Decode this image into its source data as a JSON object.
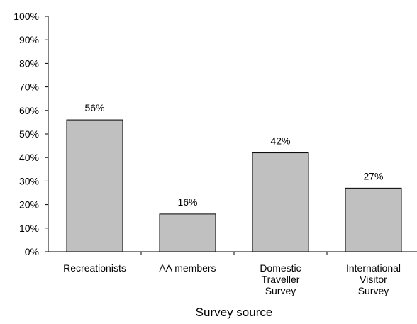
{
  "chart_data": {
    "type": "bar",
    "categories": [
      [
        "Recreationists"
      ],
      [
        "AA members"
      ],
      [
        "Domestic",
        "Traveller",
        "Survey"
      ],
      [
        "International",
        "Visitor",
        "Survey"
      ]
    ],
    "values": [
      56,
      16,
      42,
      27
    ],
    "data_labels": [
      "56%",
      "16%",
      "42%",
      "27%"
    ],
    "xlabel": "Survey source",
    "ylabel": "",
    "ylim": [
      0,
      100
    ],
    "yticks": [
      0,
      10,
      20,
      30,
      40,
      50,
      60,
      70,
      80,
      90,
      100
    ],
    "ytick_labels": [
      "0%",
      "10%",
      "20%",
      "30%",
      "40%",
      "50%",
      "60%",
      "70%",
      "80%",
      "90%",
      "100%"
    ],
    "grid": false,
    "legend": "none",
    "colors": {
      "bar_fill": "#c0c0c0",
      "bar_stroke": "#000000",
      "axis": "#000000"
    }
  }
}
